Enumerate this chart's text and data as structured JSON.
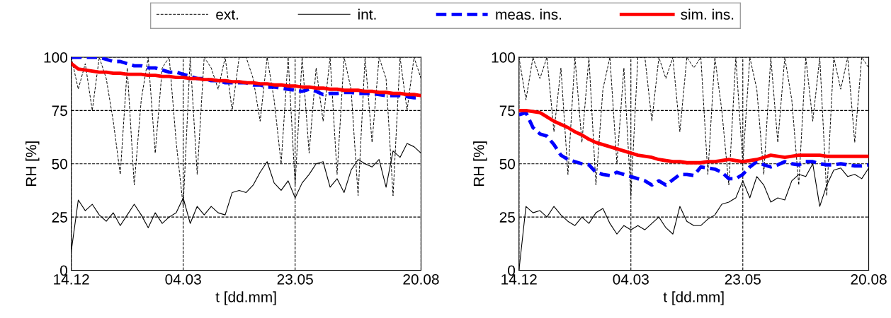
{
  "chart_data": [
    {
      "type": "line",
      "xlabel": "t [dd.mm]",
      "ylabel": "RH [%]",
      "legend": "top",
      "grid": true,
      "categories": [
        "14.12",
        null,
        null,
        null,
        null,
        null,
        null,
        null,
        null,
        null,
        null,
        null,
        null,
        null,
        null,
        null,
        "04.03",
        null,
        null,
        null,
        null,
        null,
        null,
        null,
        null,
        null,
        null,
        null,
        null,
        null,
        null,
        null,
        "23.05",
        null,
        null,
        null,
        null,
        null,
        null,
        null,
        null,
        null,
        null,
        null,
        null,
        null,
        null,
        null,
        null,
        null,
        "20.08"
      ],
      "ylim": [
        0,
        100
      ],
      "yticks": [
        0,
        25,
        50,
        75,
        100
      ],
      "series": [
        {
          "name": "ext.",
          "color": "#000000",
          "line_style": "dashed",
          "values": [
            100,
            85,
            97,
            75,
            100,
            90,
            70,
            45,
            95,
            40,
            80,
            100,
            55,
            95,
            100,
            60,
            30,
            100,
            45,
            100,
            95,
            85,
            100,
            75,
            100,
            100,
            90,
            70,
            100,
            80,
            50,
            100,
            40,
            100,
            55,
            95,
            70,
            100,
            45,
            100,
            85,
            35,
            100,
            60,
            100,
            90,
            35,
            100,
            75,
            100,
            90
          ]
        },
        {
          "name": "int.",
          "color": "#000000",
          "line_style": "solid",
          "values": [
            9,
            33,
            28,
            31,
            26,
            23,
            27,
            21,
            26,
            31,
            26,
            20,
            27,
            22,
            25,
            27,
            34,
            22,
            30,
            26,
            30,
            27,
            26,
            36.5,
            37.5,
            36.5,
            40,
            46,
            51,
            41,
            37.5,
            42,
            34,
            41,
            45,
            50,
            51,
            39,
            43,
            36.5,
            47,
            52,
            50,
            48.5,
            52,
            39,
            56,
            53,
            59.5,
            58,
            55
          ]
        },
        {
          "name": "meas. ins.",
          "color": "#0000ff",
          "line_style": "dashed",
          "values": [
            100,
            100,
            100,
            100,
            100,
            99,
            98,
            98,
            97,
            96,
            96,
            95,
            95,
            94,
            93,
            93,
            92,
            91,
            90,
            90,
            89,
            89,
            88,
            88,
            88,
            88,
            87,
            87,
            86,
            86,
            85.5,
            85,
            84.5,
            84,
            85,
            84,
            82.5,
            83,
            83,
            83.5,
            83.5,
            83,
            83,
            83,
            82.5,
            82,
            82,
            82,
            81.5,
            81,
            81
          ]
        },
        {
          "name": "sim. ins.",
          "color": "#ff0000",
          "line_style": "solid",
          "values": [
            97,
            94.5,
            94,
            93.5,
            93,
            93,
            92.5,
            92.5,
            92,
            92,
            92,
            91.5,
            91.5,
            91,
            91,
            90.5,
            90.5,
            90,
            90,
            89.5,
            89.5,
            89,
            89,
            88.5,
            88.5,
            88,
            88,
            87.5,
            87.5,
            87,
            87,
            86.5,
            86.5,
            86,
            86,
            85.5,
            85.5,
            85,
            85,
            84.5,
            84.5,
            84.5,
            84,
            84,
            83.5,
            83.5,
            83,
            83,
            82.5,
            82.5,
            82
          ]
        }
      ]
    },
    {
      "type": "line",
      "xlabel": "t [dd.mm]",
      "ylabel": "RH [%]",
      "grid": true,
      "categories": [
        "14.12",
        null,
        null,
        null,
        null,
        null,
        null,
        null,
        null,
        null,
        null,
        null,
        null,
        null,
        null,
        null,
        "04.03",
        null,
        null,
        null,
        null,
        null,
        null,
        null,
        null,
        null,
        null,
        null,
        null,
        null,
        null,
        null,
        "23.05",
        null,
        null,
        null,
        null,
        null,
        null,
        null,
        null,
        null,
        null,
        null,
        null,
        null,
        null,
        null,
        null,
        null,
        "20.08"
      ],
      "ylim": [
        0,
        100
      ],
      "yticks": [
        0,
        25,
        50,
        75,
        100
      ],
      "series": [
        {
          "color": "#000000",
          "line_style": "dashed",
          "values": [
            100,
            80,
            100,
            90,
            100,
            65,
            95,
            45,
            100,
            60,
            100,
            40,
            85,
            100,
            50,
            95,
            35,
            100,
            100,
            70,
            100,
            90,
            100,
            65,
            100,
            95,
            100,
            45,
            100,
            75,
            40,
            100,
            50,
            100,
            85,
            45,
            100,
            60,
            100,
            80,
            40,
            100,
            70,
            100,
            35,
            100,
            85,
            100,
            60,
            100,
            95
          ]
        },
        {
          "color": "#000000",
          "line_style": "solid",
          "values": [
            0,
            30,
            27,
            28,
            25,
            30,
            26,
            23,
            21,
            25,
            22,
            27,
            29,
            22,
            17,
            21,
            19,
            21,
            19,
            22,
            25,
            20,
            17,
            30,
            23,
            21,
            21,
            24,
            26,
            31,
            32,
            34,
            42,
            34,
            44,
            40,
            32,
            34,
            33,
            42,
            45,
            44,
            50,
            30,
            40,
            47,
            48,
            44,
            45,
            43,
            48
          ]
        },
        {
          "color": "#0000ff",
          "line_style": "dashed",
          "values": [
            73,
            74,
            67,
            64,
            63,
            59,
            54,
            52,
            51,
            50,
            49.5,
            46,
            45,
            44.5,
            46,
            45,
            44,
            43,
            42,
            40,
            42,
            40,
            42.5,
            45,
            45,
            44.5,
            48.5,
            48,
            47.5,
            46,
            43,
            43,
            45,
            48.5,
            51,
            49.5,
            48.5,
            49.5,
            51,
            50,
            49.5,
            51,
            51,
            50,
            49.5,
            49.5,
            50,
            49.5,
            49,
            49,
            49.5
          ]
        },
        {
          "color": "#ff0000",
          "line_style": "solid",
          "values": [
            75,
            75,
            74.5,
            74,
            72,
            70,
            68.5,
            67,
            65,
            63.5,
            61.5,
            60,
            59,
            58,
            57,
            56,
            55,
            54,
            53.5,
            53,
            52,
            51.5,
            51,
            51,
            50.5,
            50.5,
            50.5,
            51,
            51,
            51.5,
            52,
            51.5,
            51,
            51.5,
            52,
            53,
            54,
            53.5,
            53,
            53.5,
            54,
            54,
            54,
            54,
            53.5,
            53.5,
            53.5,
            53.5,
            53.5,
            53.5,
            53.5
          ]
        }
      ]
    }
  ]
}
